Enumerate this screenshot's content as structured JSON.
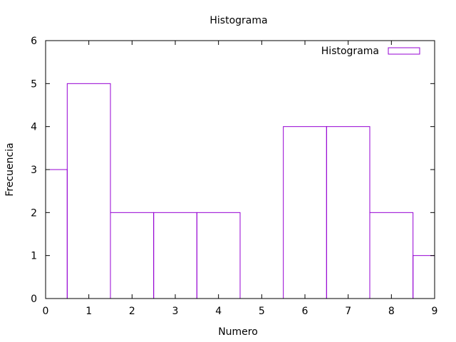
{
  "chart_data": {
    "type": "bar",
    "title": "Histograma",
    "xlabel": "Numero",
    "ylabel": "Frecuencia",
    "xlim": [
      0,
      9
    ],
    "ylim": [
      0,
      6
    ],
    "x_ticks": [
      "0",
      "1",
      "2",
      "3",
      "4",
      "5",
      "6",
      "7",
      "8",
      "9"
    ],
    "y_ticks": [
      "0",
      "1",
      "2",
      "3",
      "4",
      "5",
      "6"
    ],
    "grid": false,
    "legend_position": "top-right",
    "series": [
      {
        "name": "Histograma",
        "color": "#9400d3",
        "style": "boxes",
        "categories": [
          0,
          1,
          2,
          3,
          4,
          5,
          6,
          7,
          8,
          9
        ],
        "values": [
          3,
          5,
          2,
          2,
          2,
          0,
          4,
          4,
          2,
          1
        ]
      }
    ]
  }
}
